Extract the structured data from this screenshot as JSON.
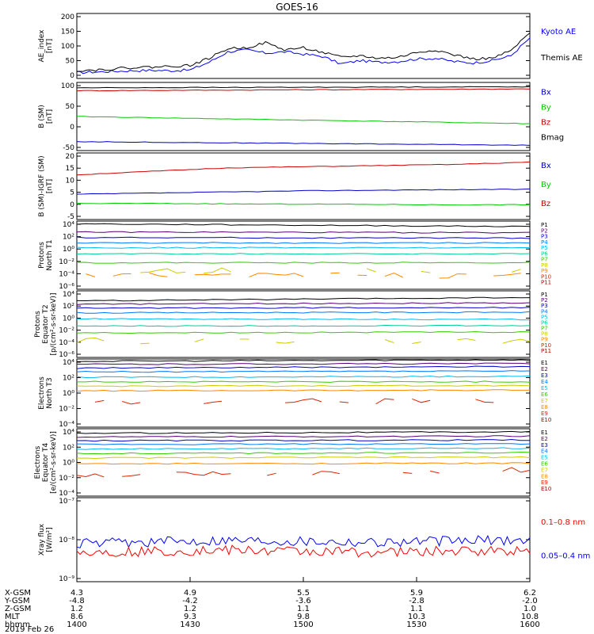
{
  "title": "GOES-16",
  "panels": [
    {
      "ylabel": [
        "AE_index",
        "[nT]"
      ],
      "ticks": [
        "200",
        "150",
        "100",
        "50",
        "0"
      ],
      "legend": [
        {
          "label": "Kyoto AE",
          "color": "#0000ff"
        },
        {
          "label": "Themis AE",
          "color": "#000000"
        }
      ]
    },
    {
      "ylabel": [
        "B (SM)",
        "[nT]"
      ],
      "ticks": [
        "100",
        "50",
        "0",
        "-50"
      ],
      "legend": [
        {
          "label": "Bx",
          "color": "#0000cc"
        },
        {
          "label": "By",
          "color": "#00cc00"
        },
        {
          "label": "Bz",
          "color": "#cc0000"
        },
        {
          "label": "Bmag",
          "color": "#000000"
        }
      ]
    },
    {
      "ylabel": [
        "B (SM)-IGRF (SM)",
        "[nT]"
      ],
      "ticks": [
        "20",
        "15",
        "10",
        "5",
        "0",
        "-5"
      ],
      "legend": [
        {
          "label": "Bx",
          "color": "#0000cc"
        },
        {
          "label": "By",
          "color": "#00cc00"
        },
        {
          "label": "Bz",
          "color": "#cc0000"
        }
      ]
    },
    {
      "ylabel": [
        "Protons",
        "North T1"
      ],
      "ticks": [
        "10⁴",
        "10²",
        "10⁰",
        "10⁻²",
        "10⁻⁴",
        "10⁻⁶"
      ],
      "legend": [
        {
          "label": "P1",
          "color": "#000000"
        },
        {
          "label": "P2",
          "color": "#550077"
        },
        {
          "label": "P3",
          "color": "#0000cc"
        },
        {
          "label": "P4",
          "color": "#0077ff"
        },
        {
          "label": "P5",
          "color": "#00bbee"
        },
        {
          "label": "P6",
          "color": "#00cc99"
        },
        {
          "label": "P7",
          "color": "#33cc00"
        },
        {
          "label": "P8",
          "color": "#cccc00"
        },
        {
          "label": "P9",
          "color": "#ff8800"
        },
        {
          "label": "P10",
          "color": "#dd2200"
        },
        {
          "label": "P11",
          "color": "#aa0000"
        }
      ]
    },
    {
      "ylabel": [
        "Protons",
        "Equator T2",
        "[p/(cm²-s-sr-keV)]"
      ],
      "ticks": [
        "10⁴",
        "10²",
        "10⁰",
        "10⁻²",
        "10⁻⁴",
        "10⁻⁶"
      ],
      "legend": [
        {
          "label": "P1",
          "color": "#000000"
        },
        {
          "label": "P2",
          "color": "#550077"
        },
        {
          "label": "P3",
          "color": "#0000cc"
        },
        {
          "label": "P4",
          "color": "#0077ff"
        },
        {
          "label": "P5",
          "color": "#00bbee"
        },
        {
          "label": "P6",
          "color": "#00cc99"
        },
        {
          "label": "P7",
          "color": "#33cc00"
        },
        {
          "label": "P8",
          "color": "#cccc00"
        },
        {
          "label": "P9",
          "color": "#ff8800"
        },
        {
          "label": "P10",
          "color": "#dd2200"
        },
        {
          "label": "P11",
          "color": "#aa0000"
        }
      ]
    },
    {
      "ylabel": [
        "Electrons",
        "North T3"
      ],
      "ticks": [
        "10⁴",
        "10²",
        "10⁰",
        "10⁻²",
        "10⁻⁴"
      ],
      "legend": [
        {
          "label": "E1",
          "color": "#000000"
        },
        {
          "label": "E2",
          "color": "#550077"
        },
        {
          "label": "E3",
          "color": "#0000cc"
        },
        {
          "label": "E4",
          "color": "#0077ff"
        },
        {
          "label": "E5",
          "color": "#00bbee"
        },
        {
          "label": "E6",
          "color": "#33cc00"
        },
        {
          "label": "E7",
          "color": "#cccc00"
        },
        {
          "label": "E8",
          "color": "#ff8800"
        },
        {
          "label": "E9",
          "color": "#dd2200"
        },
        {
          "label": "E10",
          "color": "#aa0000"
        }
      ]
    },
    {
      "ylabel": [
        "Electrons",
        "Equator T4",
        "[e/(cm²-s-sr-keV)]"
      ],
      "ticks": [
        "10⁴",
        "10²",
        "10⁰",
        "10⁻²",
        "10⁻⁴"
      ],
      "legend": [
        {
          "label": "E1",
          "color": "#000000"
        },
        {
          "label": "E2",
          "color": "#550077"
        },
        {
          "label": "E3",
          "color": "#0000cc"
        },
        {
          "label": "E4",
          "color": "#0077ff"
        },
        {
          "label": "E5",
          "color": "#00bbee"
        },
        {
          "label": "E6",
          "color": "#33cc00"
        },
        {
          "label": "E7",
          "color": "#cccc00"
        },
        {
          "label": "E8",
          "color": "#ff8800"
        },
        {
          "label": "E9",
          "color": "#dd2200"
        },
        {
          "label": "E10",
          "color": "#aa0000"
        }
      ]
    },
    {
      "ylabel": [
        "Xray flux",
        "[W/m²]"
      ],
      "ticks": [
        "10⁻⁷",
        "10⁻⁸",
        "10⁻⁹"
      ],
      "legend": [
        {
          "label": "0.1–0.8 nm",
          "color": "#ff0000"
        },
        {
          "label": "0.05–0.4 nm",
          "color": "#0000ff"
        }
      ]
    }
  ],
  "xaxis": {
    "rows": [
      {
        "label": "X-GSM",
        "values": [
          "4.3",
          "4.9",
          "5.5",
          "5.9",
          "6.2"
        ]
      },
      {
        "label": "Y-GSM",
        "values": [
          "-4.8",
          "-4.2",
          "-3.6",
          "-2.8",
          "-2.0"
        ]
      },
      {
        "label": "Z-GSM",
        "values": [
          "1.2",
          "1.2",
          "1.1",
          "1.1",
          "1.0"
        ]
      },
      {
        "label": "MLT",
        "values": [
          "8.6",
          "9.3",
          "9.8",
          "10.3",
          "10.8"
        ]
      },
      {
        "label": "hhmm",
        "values": [
          "1400",
          "1430",
          "1500",
          "1530",
          "1600"
        ]
      }
    ],
    "date": "2019 Feb 26"
  },
  "chart_data": [
    {
      "type": "line",
      "ylim": [
        0,
        200
      ],
      "x": [
        1400,
        1405,
        1410,
        1415,
        1420,
        1425,
        1430,
        1435,
        1440,
        1445,
        1450,
        1455,
        1500,
        1505,
        1510,
        1515,
        1520,
        1525,
        1530,
        1535,
        1540,
        1545,
        1550,
        1555,
        1600
      ],
      "series": [
        {
          "name": "Kyoto AE",
          "values": [
            18,
            20,
            22,
            24,
            25,
            24,
            26,
            50,
            82,
            88,
            78,
            82,
            75,
            68,
            45,
            55,
            50,
            52,
            60,
            62,
            52,
            48,
            55,
            70,
            125
          ]
        },
        {
          "name": "Themis AE",
          "values": [
            25,
            26,
            30,
            34,
            35,
            38,
            40,
            62,
            92,
            95,
            110,
            88,
            95,
            80,
            65,
            70,
            62,
            65,
            80,
            88,
            72,
            60,
            62,
            85,
            140
          ]
        }
      ]
    },
    {
      "type": "line",
      "ylim": [
        -60,
        130
      ],
      "x": [
        1400,
        1600
      ],
      "series": [
        {
          "name": "Bx",
          "values": [
            -35,
            -45
          ]
        },
        {
          "name": "By",
          "values": [
            35,
            15
          ]
        },
        {
          "name": "Bz",
          "values": [
            107,
            112
          ]
        },
        {
          "name": "Bmag",
          "values": [
            115,
            118
          ]
        }
      ]
    },
    {
      "type": "line",
      "ylim": [
        -7,
        22
      ],
      "x": [
        1400,
        1420,
        1440,
        1500,
        1520,
        1540,
        1600
      ],
      "series": [
        {
          "name": "Bx",
          "values": [
            4,
            4.5,
            5,
            5.5,
            5.8,
            6,
            6.2
          ]
        },
        {
          "name": "By",
          "values": [
            0,
            0,
            -0.2,
            -0.3,
            -0.4,
            -0.6,
            -0.5
          ]
        },
        {
          "name": "Bz",
          "values": [
            12.5,
            14,
            15.5,
            16,
            16.5,
            17,
            18
          ]
        }
      ]
    },
    {
      "type": "line",
      "log": true,
      "ylim": [
        -6,
        4
      ],
      "series": [
        {
          "name": "P1",
          "log10_values": [
            3.6,
            3.2
          ]
        },
        {
          "name": "P2",
          "log10_values": [
            2.4,
            2.3
          ]
        },
        {
          "name": "P3",
          "log10_values": [
            1.6,
            1.5
          ]
        },
        {
          "name": "P4",
          "log10_values": [
            0.8,
            0.8
          ]
        },
        {
          "name": "P5",
          "log10_values": [
            0.1,
            0.1
          ]
        },
        {
          "name": "P6",
          "log10_values": [
            -0.8,
            -0.8
          ]
        },
        {
          "name": "P7",
          "log10_values": [
            -2.1,
            -2.1
          ]
        },
        {
          "name": "P8",
          "log10_values": [
            -3.2,
            -3.2
          ]
        },
        {
          "name": "P9",
          "log10_values": [
            -4.0,
            -4.0
          ]
        }
      ]
    },
    {
      "type": "line",
      "log": true,
      "ylim": [
        -6,
        4
      ],
      "series": [
        {
          "name": "P1",
          "log10_values": [
            2.5,
            3.0
          ]
        },
        {
          "name": "P2",
          "log10_values": [
            2.0,
            2.2
          ]
        },
        {
          "name": "P3",
          "log10_values": [
            1.4,
            1.5
          ]
        },
        {
          "name": "P4",
          "log10_values": [
            0.7,
            0.8
          ]
        },
        {
          "name": "P5",
          "log10_values": [
            -0.2,
            -0.3
          ]
        },
        {
          "name": "P6",
          "log10_values": [
            -1.3,
            -1.2
          ]
        },
        {
          "name": "P7",
          "log10_values": [
            -2.3,
            -2.2
          ]
        },
        {
          "name": "P8",
          "log10_values": [
            -3.5,
            -3.5
          ]
        }
      ]
    },
    {
      "type": "line",
      "log": true,
      "ylim": [
        -5,
        4
      ],
      "series": [
        {
          "name": "E1",
          "log10_values": [
            3.7,
            3.9
          ]
        },
        {
          "name": "E2",
          "log10_values": [
            3.3,
            3.4
          ]
        },
        {
          "name": "E3",
          "log10_values": [
            2.8,
            3.0
          ]
        },
        {
          "name": "E4",
          "log10_values": [
            2.3,
            2.4
          ]
        },
        {
          "name": "E5",
          "log10_values": [
            1.6,
            1.7
          ]
        },
        {
          "name": "E6",
          "log10_values": [
            1.0,
            1.0
          ]
        },
        {
          "name": "E7",
          "log10_values": [
            0.4,
            0.5
          ]
        },
        {
          "name": "E8",
          "log10_values": [
            -0.2,
            -0.1
          ]
        },
        {
          "name": "E9",
          "log10_values": [
            -1.8,
            -1.5
          ]
        }
      ]
    },
    {
      "type": "line",
      "log": true,
      "ylim": [
        -5,
        4
      ],
      "series": [
        {
          "name": "E1",
          "log10_values": [
            3.4,
            3.6
          ]
        },
        {
          "name": "E2",
          "log10_values": [
            2.9,
            3.0
          ]
        },
        {
          "name": "E3",
          "log10_values": [
            2.4,
            2.5
          ]
        },
        {
          "name": "E4",
          "log10_values": [
            1.9,
            2.0
          ]
        },
        {
          "name": "E5",
          "log10_values": [
            1.3,
            1.4
          ]
        },
        {
          "name": "E6",
          "log10_values": [
            0.7,
            0.8
          ]
        },
        {
          "name": "E7",
          "log10_values": [
            0.1,
            0.2
          ]
        },
        {
          "name": "E8",
          "log10_values": [
            -0.7,
            -0.6
          ]
        },
        {
          "name": "E9",
          "log10_values": [
            -2.2,
            -1.5
          ]
        }
      ]
    },
    {
      "type": "line",
      "log": true,
      "ylim": [
        -9,
        -7
      ],
      "series": [
        {
          "name": "0.05–0.4 nm",
          "log10_values": [
            -8.1,
            -8.0,
            -8.05,
            -8.0
          ]
        },
        {
          "name": "0.1–0.8 nm",
          "log10_values": [
            -8.3,
            -8.25,
            -8.3,
            -8.25
          ]
        }
      ]
    }
  ]
}
